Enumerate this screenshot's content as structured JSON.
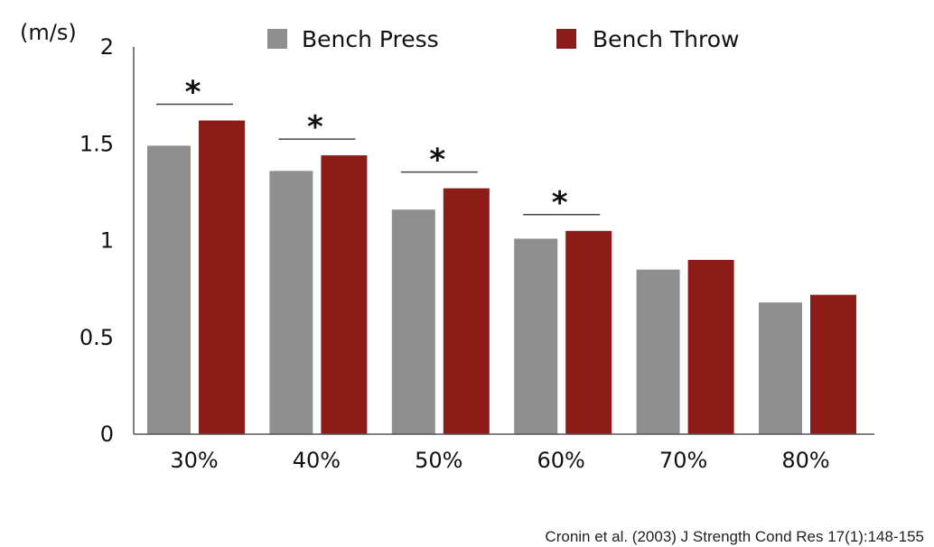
{
  "chart_data": {
    "type": "bar",
    "title": "",
    "xlabel": "",
    "ylabel": "(m/s)",
    "ylim": [
      0,
      2
    ],
    "yticks": [
      0,
      0.5,
      1,
      1.5,
      2
    ],
    "ytick_labels": [
      "0",
      "0.5",
      "1",
      "1.5",
      "2"
    ],
    "grid": false,
    "legend_position": "top",
    "categories": [
      "30%",
      "40%",
      "50%",
      "60%",
      "70%",
      "80%"
    ],
    "series": [
      {
        "name": "Bench Press",
        "color": "#8f8f8f",
        "values": [
          1.49,
          1.36,
          1.16,
          1.01,
          0.85,
          0.68
        ]
      },
      {
        "name": "Bench Throw",
        "color": "#8b1c17",
        "values": [
          1.62,
          1.44,
          1.27,
          1.05,
          0.9,
          0.72
        ]
      }
    ],
    "significance": [
      {
        "category": "30%",
        "marker": "*"
      },
      {
        "category": "40%",
        "marker": "*"
      },
      {
        "category": "50%",
        "marker": "*"
      },
      {
        "category": "60%",
        "marker": "*"
      }
    ],
    "source": "Cronin et al. (2003) J Strength Cond Res 17(1):148-155"
  }
}
